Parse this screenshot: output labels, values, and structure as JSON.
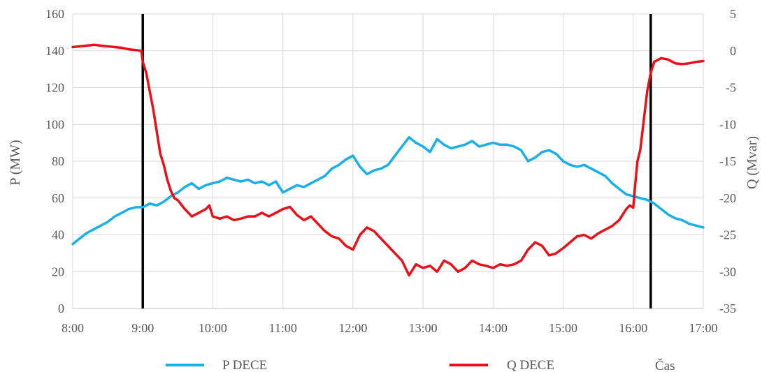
{
  "chart_data": {
    "type": "line",
    "x_axis": {
      "label": "Čas",
      "tick_labels": [
        "8:00",
        "9:00",
        "10:00",
        "11:00",
        "12:00",
        "13:00",
        "14:00",
        "15:00",
        "16:00",
        "17:00"
      ],
      "range_hours": [
        8,
        17
      ]
    },
    "y_left": {
      "label": "P (MW)",
      "range": [
        0,
        160
      ],
      "step": 20,
      "tick_labels": [
        "0",
        "20",
        "40",
        "60",
        "80",
        "100",
        "120",
        "140",
        "160"
      ]
    },
    "y_right": {
      "label": "Q (Mvar)",
      "range": [
        -35,
        5
      ],
      "step": 5,
      "tick_labels": [
        "-35",
        "-30",
        "-25",
        "-20",
        "-15",
        "-10",
        "-5",
        "0",
        "5"
      ]
    },
    "grid": true,
    "legend_position": "bottom",
    "vertical_markers_hours": [
      9.0,
      16.25
    ],
    "series": [
      {
        "name": "P DECE",
        "axis": "left",
        "color": "#1aafe6",
        "points": [
          [
            8.0,
            35
          ],
          [
            8.1,
            38
          ],
          [
            8.2,
            41
          ],
          [
            8.3,
            43
          ],
          [
            8.4,
            45
          ],
          [
            8.5,
            47
          ],
          [
            8.6,
            50
          ],
          [
            8.7,
            52
          ],
          [
            8.8,
            54
          ],
          [
            8.9,
            55
          ],
          [
            9.0,
            55
          ],
          [
            9.1,
            57
          ],
          [
            9.2,
            56
          ],
          [
            9.3,
            58
          ],
          [
            9.4,
            61
          ],
          [
            9.5,
            63
          ],
          [
            9.6,
            66
          ],
          [
            9.7,
            68
          ],
          [
            9.8,
            65
          ],
          [
            9.9,
            67
          ],
          [
            10.0,
            68
          ],
          [
            10.1,
            69
          ],
          [
            10.2,
            71
          ],
          [
            10.3,
            70
          ],
          [
            10.4,
            69
          ],
          [
            10.5,
            70
          ],
          [
            10.6,
            68
          ],
          [
            10.7,
            69
          ],
          [
            10.8,
            67
          ],
          [
            10.9,
            69
          ],
          [
            11.0,
            63
          ],
          [
            11.1,
            65
          ],
          [
            11.2,
            67
          ],
          [
            11.3,
            66
          ],
          [
            11.4,
            68
          ],
          [
            11.5,
            70
          ],
          [
            11.6,
            72
          ],
          [
            11.7,
            76
          ],
          [
            11.8,
            78
          ],
          [
            11.9,
            81
          ],
          [
            12.0,
            83
          ],
          [
            12.1,
            77
          ],
          [
            12.2,
            73
          ],
          [
            12.3,
            75
          ],
          [
            12.4,
            76
          ],
          [
            12.5,
            78
          ],
          [
            12.6,
            83
          ],
          [
            12.7,
            88
          ],
          [
            12.8,
            93
          ],
          [
            12.9,
            90
          ],
          [
            13.0,
            88
          ],
          [
            13.1,
            85
          ],
          [
            13.2,
            92
          ],
          [
            13.3,
            89
          ],
          [
            13.4,
            87
          ],
          [
            13.5,
            88
          ],
          [
            13.6,
            89
          ],
          [
            13.7,
            91
          ],
          [
            13.8,
            88
          ],
          [
            13.9,
            89
          ],
          [
            14.0,
            90
          ],
          [
            14.1,
            89
          ],
          [
            14.2,
            89
          ],
          [
            14.3,
            88
          ],
          [
            14.4,
            86
          ],
          [
            14.5,
            80
          ],
          [
            14.6,
            82
          ],
          [
            14.7,
            85
          ],
          [
            14.8,
            86
          ],
          [
            14.9,
            84
          ],
          [
            15.0,
            80
          ],
          [
            15.1,
            78
          ],
          [
            15.2,
            77
          ],
          [
            15.3,
            78
          ],
          [
            15.4,
            76
          ],
          [
            15.5,
            74
          ],
          [
            15.6,
            72
          ],
          [
            15.7,
            68
          ],
          [
            15.8,
            65
          ],
          [
            15.9,
            62
          ],
          [
            16.0,
            61
          ],
          [
            16.1,
            60
          ],
          [
            16.2,
            59
          ],
          [
            16.3,
            57
          ],
          [
            16.4,
            54
          ],
          [
            16.5,
            51
          ],
          [
            16.6,
            49
          ],
          [
            16.7,
            48
          ],
          [
            16.8,
            46
          ],
          [
            16.9,
            45
          ],
          [
            17.0,
            44
          ]
        ]
      },
      {
        "name": "Q DECE",
        "axis": "right",
        "color": "#e8111a",
        "points": [
          [
            8.0,
            0.5
          ],
          [
            8.1,
            0.6
          ],
          [
            8.2,
            0.7
          ],
          [
            8.3,
            0.8
          ],
          [
            8.4,
            0.7
          ],
          [
            8.5,
            0.6
          ],
          [
            8.6,
            0.5
          ],
          [
            8.7,
            0.4
          ],
          [
            8.8,
            0.2
          ],
          [
            8.9,
            0.1
          ],
          [
            8.98,
            0.0
          ],
          [
            9.0,
            -1.5
          ],
          [
            9.05,
            -3.0
          ],
          [
            9.1,
            -5.5
          ],
          [
            9.15,
            -8.0
          ],
          [
            9.2,
            -11.0
          ],
          [
            9.25,
            -14.0
          ],
          [
            9.3,
            -15.5
          ],
          [
            9.35,
            -17.5
          ],
          [
            9.4,
            -19.0
          ],
          [
            9.45,
            -20.0
          ],
          [
            9.5,
            -20.3
          ],
          [
            9.6,
            -21.5
          ],
          [
            9.7,
            -22.5
          ],
          [
            9.8,
            -22.0
          ],
          [
            9.9,
            -21.5
          ],
          [
            9.95,
            -21.0
          ],
          [
            10.0,
            -22.5
          ],
          [
            10.1,
            -22.8
          ],
          [
            10.2,
            -22.5
          ],
          [
            10.3,
            -23.0
          ],
          [
            10.4,
            -22.8
          ],
          [
            10.5,
            -22.5
          ],
          [
            10.6,
            -22.5
          ],
          [
            10.7,
            -22.0
          ],
          [
            10.8,
            -22.5
          ],
          [
            10.9,
            -22.0
          ],
          [
            11.0,
            -21.5
          ],
          [
            11.1,
            -21.2
          ],
          [
            11.2,
            -22.3
          ],
          [
            11.3,
            -23.0
          ],
          [
            11.4,
            -22.5
          ],
          [
            11.5,
            -23.5
          ],
          [
            11.6,
            -24.5
          ],
          [
            11.7,
            -25.2
          ],
          [
            11.8,
            -25.5
          ],
          [
            11.9,
            -26.5
          ],
          [
            12.0,
            -27.0
          ],
          [
            12.1,
            -25.0
          ],
          [
            12.2,
            -24.0
          ],
          [
            12.3,
            -24.5
          ],
          [
            12.4,
            -25.5
          ],
          [
            12.5,
            -26.5
          ],
          [
            12.6,
            -27.5
          ],
          [
            12.7,
            -28.5
          ],
          [
            12.8,
            -30.5
          ],
          [
            12.9,
            -29.0
          ],
          [
            13.0,
            -29.5
          ],
          [
            13.1,
            -29.2
          ],
          [
            13.2,
            -30.0
          ],
          [
            13.3,
            -28.5
          ],
          [
            13.4,
            -29.0
          ],
          [
            13.5,
            -30.0
          ],
          [
            13.6,
            -29.5
          ],
          [
            13.7,
            -28.5
          ],
          [
            13.8,
            -29.0
          ],
          [
            13.9,
            -29.2
          ],
          [
            14.0,
            -29.5
          ],
          [
            14.1,
            -29.0
          ],
          [
            14.2,
            -29.2
          ],
          [
            14.3,
            -29.0
          ],
          [
            14.4,
            -28.5
          ],
          [
            14.5,
            -27.0
          ],
          [
            14.6,
            -26.0
          ],
          [
            14.7,
            -26.5
          ],
          [
            14.8,
            -27.8
          ],
          [
            14.9,
            -27.5
          ],
          [
            15.0,
            -26.8
          ],
          [
            15.1,
            -26.0
          ],
          [
            15.2,
            -25.2
          ],
          [
            15.3,
            -25.0
          ],
          [
            15.4,
            -25.5
          ],
          [
            15.5,
            -24.8
          ],
          [
            15.6,
            -24.3
          ],
          [
            15.7,
            -23.8
          ],
          [
            15.8,
            -23.0
          ],
          [
            15.9,
            -21.5
          ],
          [
            15.95,
            -21.0
          ],
          [
            16.0,
            -21.3
          ],
          [
            16.03,
            -18.0
          ],
          [
            16.06,
            -15.0
          ],
          [
            16.1,
            -13.5
          ],
          [
            16.15,
            -9.5
          ],
          [
            16.2,
            -5.5
          ],
          [
            16.25,
            -3.0
          ],
          [
            16.3,
            -1.5
          ],
          [
            16.4,
            -1.0
          ],
          [
            16.5,
            -1.2
          ],
          [
            16.6,
            -1.7
          ],
          [
            16.7,
            -1.8
          ],
          [
            16.8,
            -1.7
          ],
          [
            16.9,
            -1.5
          ],
          [
            17.0,
            -1.4
          ]
        ]
      }
    ]
  }
}
